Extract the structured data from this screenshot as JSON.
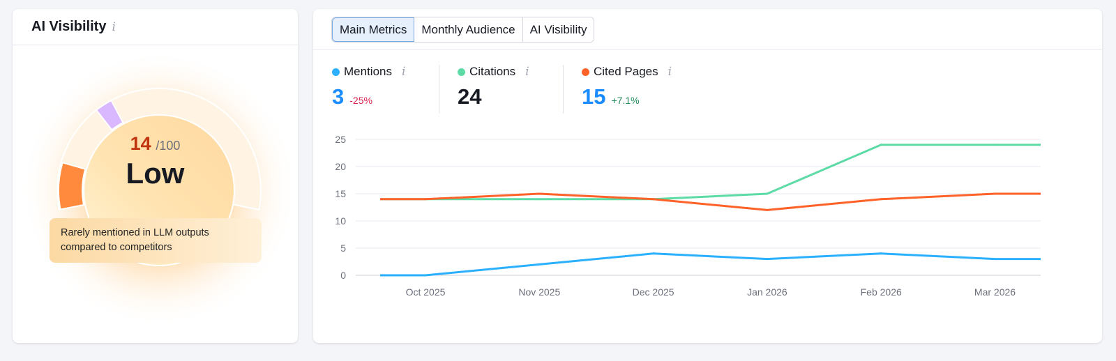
{
  "left_card": {
    "title": "AI Visibility",
    "info_icon": "info-icon",
    "score": "14",
    "score_max": "/100",
    "level": "Low",
    "note": "Rarely mentioned in LLM outputs compared to competitors",
    "score_value": 14,
    "colors": {
      "score": "#c0330f",
      "segment_low": "#ff8a3d",
      "segment_marker": "#d9b8ff"
    }
  },
  "tabs": [
    {
      "label": "Main Metrics",
      "active": true
    },
    {
      "label": "Monthly Audience",
      "active": false
    },
    {
      "label": "AI Visibility",
      "active": false
    }
  ],
  "metrics": [
    {
      "label": "Mentions",
      "value": "3",
      "delta": "-25%",
      "color": "#2bb0ff",
      "value_color": "#1a8cff",
      "delta_color": "#d6204b"
    },
    {
      "label": "Citations",
      "value": "24",
      "delta": "",
      "color": "#5ddba6",
      "value_color": "#171a22",
      "delta_color": ""
    },
    {
      "label": "Cited Pages",
      "value": "15",
      "delta": "+7.1%",
      "color": "#ff6229",
      "value_color": "#1a8cff",
      "delta_color": "#1f8a5a"
    }
  ],
  "chart_data": {
    "type": "line",
    "categories": [
      "Oct 2025",
      "Nov 2025",
      "Dec 2025",
      "Jan 2026",
      "Feb 2026",
      "Mar 2026"
    ],
    "series": [
      {
        "name": "Mentions",
        "color": "#2bb0ff",
        "values": [
          0,
          2,
          4,
          3,
          4,
          3
        ]
      },
      {
        "name": "Citations",
        "color": "#5ddba6",
        "values": [
          14,
          14,
          14,
          15,
          24,
          24
        ]
      },
      {
        "name": "Cited Pages",
        "color": "#ff6229",
        "values": [
          14,
          15,
          14,
          12,
          14,
          15
        ]
      }
    ],
    "yticks": [
      0,
      5,
      10,
      15,
      20,
      25
    ],
    "ylim": [
      0,
      25
    ],
    "grid": true,
    "legend": "top"
  }
}
